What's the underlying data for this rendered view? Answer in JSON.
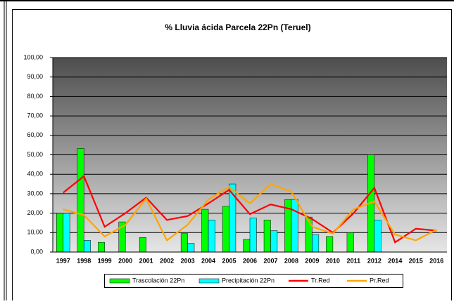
{
  "chart_data": {
    "type": "bar",
    "title": "% Lluvia ácida Parcela 22Pn (Teruel)",
    "categories": [
      "1997",
      "1998",
      "1999",
      "2000",
      "2001",
      "2002",
      "2003",
      "2004",
      "2005",
      "2006",
      "2007",
      "2008",
      "2009",
      "2010",
      "2011",
      "2012",
      "2014",
      "2015",
      "2016"
    ],
    "series": [
      {
        "name": "Trascolación  22Pn",
        "type": "bar",
        "color": "#00ff00",
        "values": [
          20,
          53.3,
          5,
          15.5,
          7.5,
          null,
          9.5,
          22,
          23.5,
          6.5,
          16.5,
          27,
          18,
          8,
          10,
          50,
          null,
          null,
          null
        ]
      },
      {
        "name": "Precipitación 22Pn",
        "type": "bar",
        "color": "#00ffff",
        "values": [
          20,
          6,
          null,
          null,
          null,
          null,
          4.5,
          16.5,
          35,
          17.5,
          11,
          27,
          9,
          null,
          null,
          16.5,
          null,
          null,
          null
        ]
      },
      {
        "name": "Tr.Red",
        "type": "line",
        "color": "#ff0000",
        "values": [
          30.5,
          39,
          13,
          20,
          28,
          16.5,
          18.5,
          25,
          32,
          19.5,
          24.5,
          22,
          17,
          10,
          20,
          33,
          5,
          12,
          11
        ]
      },
      {
        "name": "Pr.Red",
        "type": "line",
        "color": "#ffa500",
        "values": [
          22,
          19,
          8,
          14,
          27.5,
          6,
          14,
          27,
          33.5,
          25,
          35,
          31,
          13,
          9.5,
          22,
          26,
          9,
          6,
          11.5
        ]
      }
    ],
    "ylim": [
      0,
      100
    ],
    "yticks": [
      {
        "value": 0,
        "label": "0,00"
      },
      {
        "value": 10,
        "label": "10,00"
      },
      {
        "value": 20,
        "label": "20,00"
      },
      {
        "value": 30,
        "label": "30,00"
      },
      {
        "value": 40,
        "label": "40,00"
      },
      {
        "value": 50,
        "label": "50,00"
      },
      {
        "value": 60,
        "label": "60,00"
      },
      {
        "value": 70,
        "label": "70,00"
      },
      {
        "value": 80,
        "label": "80,00"
      },
      {
        "value": 90,
        "label": "90,00"
      },
      {
        "value": 100,
        "label": "100,00"
      }
    ],
    "grid": true,
    "legend": "bottom"
  }
}
